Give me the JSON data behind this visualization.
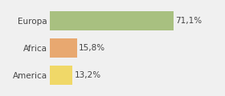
{
  "categories": [
    "Europa",
    "Africa",
    "America"
  ],
  "values": [
    71.1,
    15.8,
    13.2
  ],
  "labels": [
    "71,1%",
    "15,8%",
    "13,2%"
  ],
  "bar_colors": [
    "#a8c080",
    "#e8a870",
    "#f0d868"
  ],
  "background_color": "#f0f0f0",
  "xlim": [
    0,
    85
  ],
  "bar_height": 0.7,
  "label_fontsize": 7.5,
  "tick_fontsize": 7.5,
  "figsize": [
    2.8,
    1.2
  ],
  "dpi": 100
}
